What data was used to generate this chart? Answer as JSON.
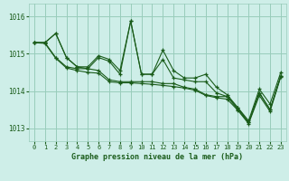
{
  "title": "Graphe pression niveau de la mer (hPa)",
  "background_color": "#ceeee8",
  "grid_color": "#99ccbb",
  "line_color": "#1a5c1a",
  "xlim": [
    -0.5,
    23.5
  ],
  "ylim": [
    1012.65,
    1016.35
  ],
  "yticks": [
    1013,
    1014,
    1015,
    1016
  ],
  "xticks": [
    0,
    1,
    2,
    3,
    4,
    5,
    6,
    7,
    8,
    9,
    10,
    11,
    12,
    13,
    14,
    15,
    16,
    17,
    18,
    19,
    20,
    21,
    22,
    23
  ],
  "series": [
    [
      1015.3,
      1015.3,
      1015.55,
      1014.9,
      1014.65,
      1014.65,
      1014.95,
      1014.85,
      1014.55,
      1015.88,
      1014.45,
      1014.45,
      1015.1,
      1014.55,
      1014.35,
      1014.35,
      1014.45,
      1014.1,
      1013.9,
      1013.55,
      1013.2,
      1014.05,
      1013.65,
      1014.5
    ],
    [
      1015.3,
      1015.3,
      1015.55,
      1014.9,
      1014.65,
      1014.6,
      1014.9,
      1014.8,
      1014.45,
      1015.88,
      1014.45,
      1014.45,
      1014.85,
      1014.35,
      1014.3,
      1014.25,
      1014.25,
      1013.95,
      1013.85,
      1013.55,
      1013.15,
      1013.95,
      1013.5,
      1014.4
    ],
    [
      1015.3,
      1015.3,
      1014.9,
      1014.65,
      1014.6,
      1014.6,
      1014.55,
      1014.3,
      1014.25,
      1014.25,
      1014.25,
      1014.25,
      1014.2,
      1014.2,
      1014.1,
      1014.05,
      1013.9,
      1013.85,
      1013.85,
      1013.5,
      1013.15,
      1013.95,
      1013.5,
      1014.4
    ],
    [
      1015.3,
      1015.28,
      1014.88,
      1014.62,
      1014.55,
      1014.5,
      1014.48,
      1014.25,
      1014.22,
      1014.22,
      1014.2,
      1014.18,
      1014.15,
      1014.12,
      1014.08,
      1014.02,
      1013.88,
      1013.82,
      1013.78,
      1013.48,
      1013.12,
      1013.88,
      1013.45,
      1014.38
    ]
  ]
}
